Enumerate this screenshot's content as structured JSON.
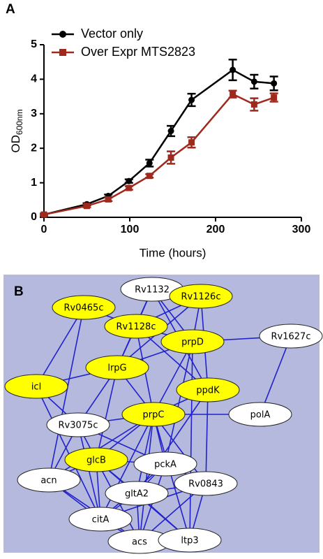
{
  "panels": [
    "A",
    "B"
  ],
  "chart_data": {
    "type": "line",
    "xlabel": "Time (hours)",
    "ylabel": "OD",
    "ylabel_subscript": "600nm",
    "x": [
      0,
      50,
      75,
      99,
      123,
      148,
      172,
      220,
      245,
      268
    ],
    "series": [
      {
        "name": "Vector only",
        "color": "#000000",
        "marker": "circle",
        "values": [
          0.08,
          0.38,
          0.62,
          1.05,
          1.57,
          2.5,
          3.4,
          4.27,
          3.93,
          3.88
        ],
        "errors": [
          0.03,
          0.03,
          0.04,
          0.05,
          0.1,
          0.15,
          0.18,
          0.3,
          0.2,
          0.2
        ]
      },
      {
        "name": "Over Expr MTS2823",
        "color": "#a0291e",
        "marker": "square",
        "values": [
          0.08,
          0.33,
          0.52,
          0.85,
          1.2,
          1.73,
          2.17,
          3.57,
          3.27,
          3.47
        ],
        "errors": [
          0.03,
          0.04,
          0.05,
          0.05,
          0.05,
          0.18,
          0.15,
          0.1,
          0.18,
          0.12
        ]
      }
    ],
    "xlim": [
      0,
      300
    ],
    "xticks": [
      0,
      100,
      200,
      300
    ],
    "ylim": [
      0,
      5
    ],
    "yticks": [
      0,
      1,
      2,
      3,
      4,
      5
    ],
    "legend": "upper left"
  },
  "network": {
    "background": "#b4b9dd",
    "edge_color": "#2222cc",
    "nodes": [
      {
        "label": "Rv1132",
        "color": "#ffffff"
      },
      {
        "label": "Rv1126c",
        "color": "#ffff00"
      },
      {
        "label": "Rv0465c",
        "color": "#ffff00"
      },
      {
        "label": "Rv1128c",
        "color": "#ffff00"
      },
      {
        "label": "prpD",
        "color": "#ffff00"
      },
      {
        "label": "Rv1627c",
        "color": "#ffffff"
      },
      {
        "label": "lrpG",
        "color": "#ffff00"
      },
      {
        "label": "icl",
        "color": "#ffff00"
      },
      {
        "label": "ppdK",
        "color": "#ffff00"
      },
      {
        "label": "prpC",
        "color": "#ffff00"
      },
      {
        "label": "polA",
        "color": "#ffffff"
      },
      {
        "label": "Rv3075c",
        "color": "#ffffff"
      },
      {
        "label": "glcB",
        "color": "#ffff00"
      },
      {
        "label": "pckA",
        "color": "#ffffff"
      },
      {
        "label": "acn",
        "color": "#ffffff"
      },
      {
        "label": "Rv0843",
        "color": "#ffffff"
      },
      {
        "label": "gltA2",
        "color": "#ffffff"
      },
      {
        "label": "citA",
        "color": "#ffffff"
      },
      {
        "label": "acs",
        "color": "#ffffff"
      },
      {
        "label": "ltp3",
        "color": "#ffffff"
      }
    ],
    "edges": [
      [
        "Rv1132",
        "Rv1128c"
      ],
      [
        "Rv1132",
        "Rv1126c"
      ],
      [
        "Rv1132",
        "prpD"
      ],
      [
        "Rv1132",
        "lrpG"
      ],
      [
        "Rv1132",
        "ppdK"
      ],
      [
        "Rv1126c",
        "Rv1128c"
      ],
      [
        "Rv1126c",
        "prpD"
      ],
      [
        "Rv1126c",
        "lrpG"
      ],
      [
        "Rv1126c",
        "ppdK"
      ],
      [
        "Rv0465c",
        "Rv1128c"
      ],
      [
        "Rv0465c",
        "icl"
      ],
      [
        "Rv0465c",
        "acn"
      ],
      [
        "Rv1128c",
        "prpD"
      ],
      [
        "Rv1128c",
        "lrpG"
      ],
      [
        "Rv1128c",
        "prpC"
      ],
      [
        "Rv1128c",
        "ppdK"
      ],
      [
        "prpD",
        "Rv1627c"
      ],
      [
        "prpD",
        "lrpG"
      ],
      [
        "prpD",
        "prpC"
      ],
      [
        "prpD",
        "pckA"
      ],
      [
        "prpD",
        "ltp3"
      ],
      [
        "Rv1627c",
        "polA"
      ],
      [
        "lrpG",
        "icl"
      ],
      [
        "lrpG",
        "prpC"
      ],
      [
        "lrpG",
        "Rv3075c"
      ],
      [
        "lrpG",
        "glcB"
      ],
      [
        "icl",
        "Rv3075c"
      ],
      [
        "icl",
        "citA"
      ],
      [
        "ppdK",
        "prpC"
      ],
      [
        "ppdK",
        "Rv0843"
      ],
      [
        "ppdK",
        "gltA2"
      ],
      [
        "prpC",
        "polA"
      ],
      [
        "prpC",
        "Rv3075c"
      ],
      [
        "prpC",
        "glcB"
      ],
      [
        "prpC",
        "pckA"
      ],
      [
        "prpC",
        "gltA2"
      ],
      [
        "prpC",
        "Rv0843"
      ],
      [
        "prpC",
        "citA"
      ],
      [
        "prpC",
        "acs"
      ],
      [
        "prpC",
        "ltp3"
      ],
      [
        "prpC",
        "acn"
      ],
      [
        "Rv3075c",
        "acn"
      ],
      [
        "Rv3075c",
        "glcB"
      ],
      [
        "Rv3075c",
        "pckA"
      ],
      [
        "Rv3075c",
        "citA"
      ],
      [
        "glcB",
        "pckA"
      ],
      [
        "glcB",
        "gltA2"
      ],
      [
        "glcB",
        "citA"
      ],
      [
        "glcB",
        "acs"
      ],
      [
        "glcB",
        "acn"
      ],
      [
        "glcB",
        "ltp3"
      ],
      [
        "pckA",
        "Rv0843"
      ],
      [
        "pckA",
        "gltA2"
      ],
      [
        "pckA",
        "citA"
      ],
      [
        "pckA",
        "acs"
      ],
      [
        "gltA2",
        "Rv0843"
      ],
      [
        "gltA2",
        "citA"
      ],
      [
        "gltA2",
        "acs"
      ],
      [
        "gltA2",
        "ltp3"
      ],
      [
        "acn",
        "citA"
      ],
      [
        "acn",
        "acs"
      ],
      [
        "citA",
        "acs"
      ],
      [
        "citA",
        "Rv0843"
      ],
      [
        "acs",
        "ltp3"
      ],
      [
        "acs",
        "Rv0843"
      ],
      [
        "ltp3",
        "Rv0843"
      ]
    ]
  }
}
